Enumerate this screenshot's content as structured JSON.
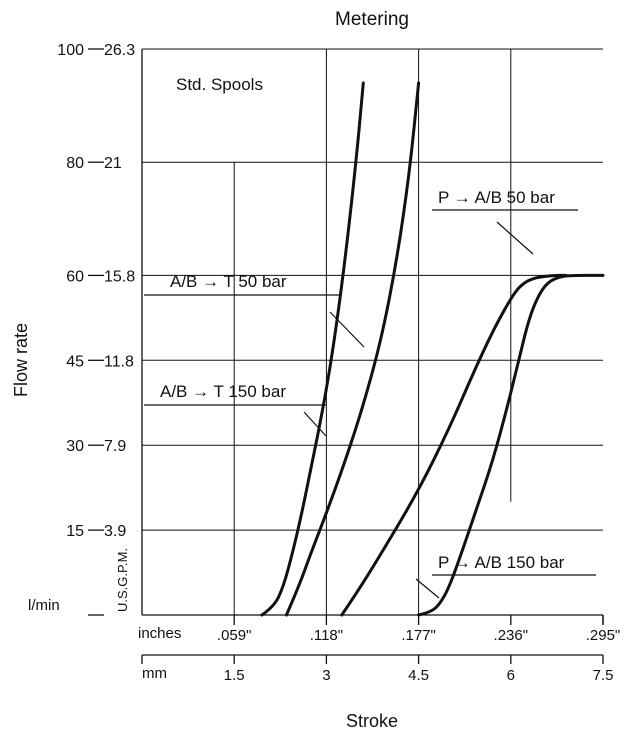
{
  "chart_data": {
    "type": "line",
    "title": "Metering",
    "xlabel": "Stroke",
    "ylabel": "Flow rate",
    "grid": true,
    "x_unit": "mm",
    "y_unit": "l/min",
    "xlim": [
      0,
      7.5
    ],
    "ylim": [
      0,
      100
    ],
    "y_ticks_lmin": [
      {
        "value": 15,
        "label": "15"
      },
      {
        "value": 30,
        "label": "30"
      },
      {
        "value": 45,
        "label": "45"
      },
      {
        "value": 60,
        "label": "60"
      },
      {
        "value": 80,
        "label": "80"
      },
      {
        "value": 100,
        "label": "100"
      }
    ],
    "y_ticks_gpm": [
      {
        "value": 15,
        "label": "3.9"
      },
      {
        "value": 30,
        "label": "7.9"
      },
      {
        "value": 45,
        "label": "11.8"
      },
      {
        "value": 60,
        "label": "15.8"
      },
      {
        "value": 80,
        "label": "21"
      },
      {
        "value": 100,
        "label": "26.3"
      }
    ],
    "y_unit_label_lmin": "l/min",
    "y_unit_label_gpm": "U.S.G.P.M.",
    "x_ticks_inches": [
      {
        "value": 1.5,
        "label": ".059\""
      },
      {
        "value": 3,
        "label": ".118\""
      },
      {
        "value": 4.5,
        "label": ".177\""
      },
      {
        "value": 6,
        "label": ".236\""
      },
      {
        "value": 7.5,
        "label": ".295\""
      }
    ],
    "x_ticks_mm": [
      {
        "value": 1.5,
        "label": "1.5"
      },
      {
        "value": 3,
        "label": "3"
      },
      {
        "value": 4.5,
        "label": "4.5"
      },
      {
        "value": 6,
        "label": "6"
      },
      {
        "value": 7.5,
        "label": "7.5"
      }
    ],
    "x_unit_label_inches": "inches",
    "x_unit_label_mm": "mm",
    "annotations": {
      "std_spools": "Std. Spools",
      "ab_t_50": "A/B → T 50 bar",
      "ab_t_150": "A/B → T 150 bar",
      "p_ab_50": "P → A/B 50 bar",
      "p_ab_150": "P → A/B 150 bar"
    },
    "series": [
      {
        "key": "ab_t_150",
        "x": [
          1.95,
          2.15,
          2.3,
          2.45,
          2.6,
          2.75,
          2.9,
          3.05,
          3.2,
          3.35,
          3.5,
          3.6
        ],
        "y": [
          0,
          1.5,
          5,
          11,
          18,
          26,
          34,
          43,
          54,
          67,
          82,
          94
        ]
      },
      {
        "key": "ab_t_50",
        "x": [
          2.35,
          2.55,
          2.75,
          3.0,
          3.3,
          3.6,
          3.9,
          4.15,
          4.35,
          4.5
        ],
        "y": [
          0,
          5,
          11,
          18,
          27,
          37,
          49,
          63,
          78,
          94
        ]
      },
      {
        "key": "p_ab_50",
        "x": [
          3.25,
          3.5,
          3.9,
          4.5,
          5.0,
          5.4,
          5.7,
          5.95,
          6.1,
          6.2,
          6.3,
          6.45,
          6.7,
          6.9
        ],
        "y": [
          0,
          4,
          11,
          22,
          33,
          43,
          50,
          55,
          57.5,
          58.5,
          59.2,
          59.7,
          60,
          60
        ]
      },
      {
        "key": "p_ab_150",
        "x": [
          4.5,
          4.7,
          4.85,
          5.0,
          5.2,
          5.45,
          5.7,
          5.95,
          6.15,
          6.3,
          6.45,
          6.6,
          6.8,
          7.0,
          7.5
        ],
        "y": [
          0,
          0.5,
          2,
          5,
          11,
          19,
          27,
          37,
          46,
          52.5,
          56.5,
          58.8,
          59.8,
          60,
          60
        ]
      }
    ]
  }
}
